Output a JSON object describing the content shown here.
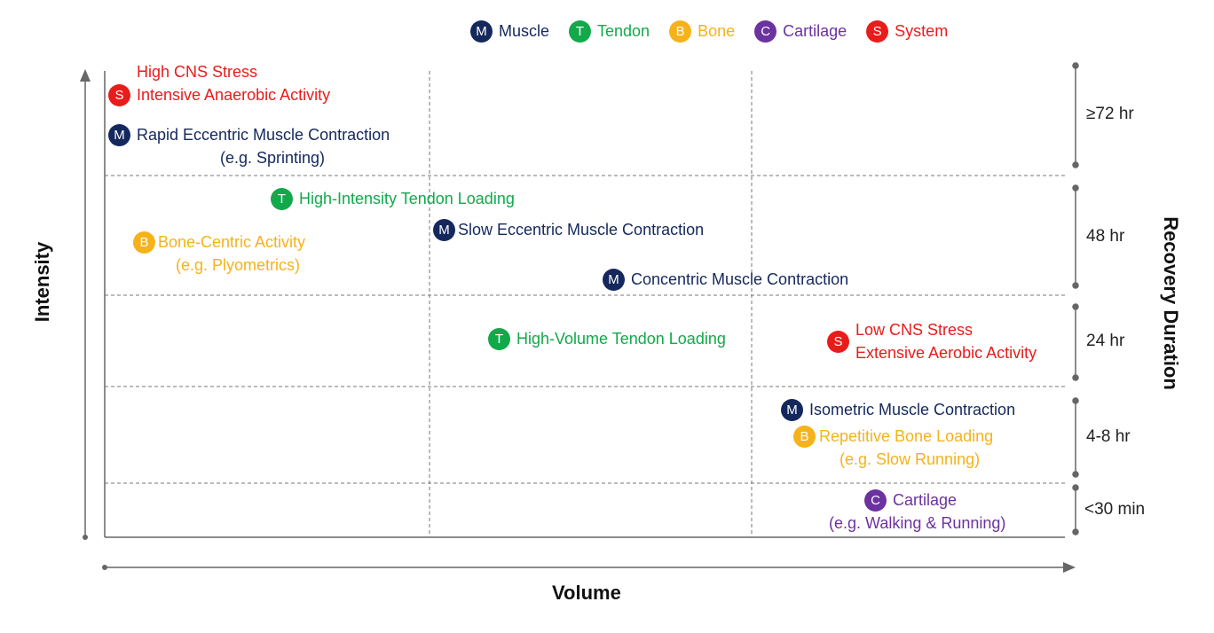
{
  "legend": {
    "muscle": {
      "letter": "M",
      "label": "Muscle"
    },
    "tendon": {
      "letter": "T",
      "label": "Tendon"
    },
    "bone": {
      "letter": "B",
      "label": "Bone"
    },
    "cartilage": {
      "letter": "C",
      "label": "Cartilage"
    },
    "system": {
      "letter": "S",
      "label": "System"
    }
  },
  "axes": {
    "x_title": "Volume",
    "y_title": "Intensity",
    "right_title": "Recovery Duration"
  },
  "recovery_bands": [
    "≥72 hr",
    "48 hr",
    "24 hr",
    "4-8 hr",
    "<30 min"
  ],
  "items": {
    "high_cns": {
      "letter": "S",
      "line1": "High CNS Stress",
      "line2": "Intensive Anaerobic Activity"
    },
    "rapid_eccentric": {
      "letter": "M",
      "line1": "Rapid Eccentric Muscle Contraction",
      "line2": "(e.g. Sprinting)"
    },
    "high_intensity_tendon": {
      "letter": "T",
      "line1": "High-Intensity Tendon Loading"
    },
    "bone_centric": {
      "letter": "B",
      "line1": "Bone-Centric Activity",
      "line2": "(e.g. Plyometrics)"
    },
    "slow_eccentric": {
      "letter": "M",
      "line1": "Slow Eccentric Muscle Contraction"
    },
    "concentric": {
      "letter": "M",
      "line1": "Concentric Muscle Contraction"
    },
    "high_volume_tendon": {
      "letter": "T",
      "line1": "High-Volume Tendon Loading"
    },
    "low_cns": {
      "letter": "S",
      "line1": "Low CNS Stress",
      "line2": "Extensive Aerobic Activity"
    },
    "isometric": {
      "letter": "M",
      "line1": "Isometric Muscle Contraction"
    },
    "repetitive_bone": {
      "letter": "B",
      "line1": "Repetitive Bone Loading",
      "line2": "(e.g. Slow Running)"
    },
    "cartilage": {
      "letter": "C",
      "line1": "Cartilage",
      "line2": "(e.g. Walking & Running)"
    }
  },
  "colors": {
    "muscle": "#14285e",
    "tendon": "#12a94a",
    "bone": "#f5b21a",
    "cartilage": "#6b32a0",
    "system": "#ea1b1b",
    "axis": "#666666",
    "grid": "#777777"
  }
}
